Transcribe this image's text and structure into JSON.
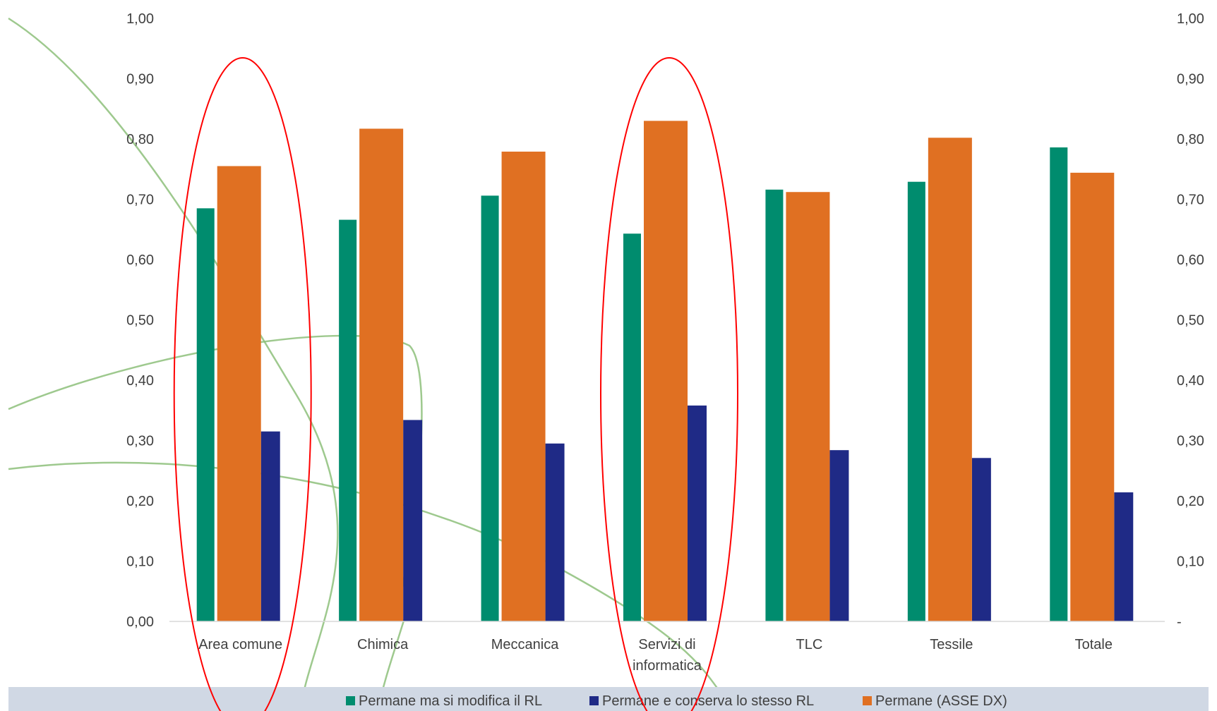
{
  "chart_data": {
    "type": "bar",
    "categories": [
      [
        "Area comune"
      ],
      [
        "Chimica"
      ],
      [
        "Meccanica"
      ],
      [
        "Servizi di",
        "informatica"
      ],
      [
        "TLC"
      ],
      [
        "Tessile"
      ],
      [
        "Totale"
      ]
    ],
    "series": [
      {
        "name": "Permane ma si modifica il RL",
        "axis": "left",
        "color": "#008C6E",
        "values": [
          0.685,
          0.666,
          0.706,
          0.643,
          0.716,
          0.729,
          0.786
        ]
      },
      {
        "name": "Permane e conserva lo stesso RL",
        "axis": "left",
        "color": "#1F2A86",
        "values": [
          0.315,
          0.334,
          0.295,
          0.358,
          0.284,
          0.271,
          0.214
        ]
      },
      {
        "name": "Permane (ASSE DX)",
        "axis": "right",
        "color": "#E07022",
        "values": [
          0.755,
          0.817,
          0.779,
          0.83,
          0.712,
          0.802,
          0.744
        ]
      }
    ],
    "left_axis": {
      "ylim": [
        0,
        1
      ],
      "ticks": [
        "0,00",
        "0,10",
        "0,20",
        "0,30",
        "0,40",
        "0,50",
        "0,60",
        "0,70",
        "0,80",
        "0,90",
        "1,00"
      ]
    },
    "right_axis": {
      "ylim": [
        0,
        1
      ],
      "ticks": [
        "-",
        "0,10",
        "0,20",
        "0,30",
        "0,40",
        "0,50",
        "0,60",
        "0,70",
        "0,80",
        "0,90",
        "1,00"
      ]
    },
    "grid": false,
    "legend_position": "bottom",
    "legend_background": "#D0D8E4",
    "highlighted_categories": [
      "Area comune",
      "Servizi di informatica"
    ],
    "highlight_color": "#FF0000",
    "decoration_color": "#8DBF7A"
  }
}
